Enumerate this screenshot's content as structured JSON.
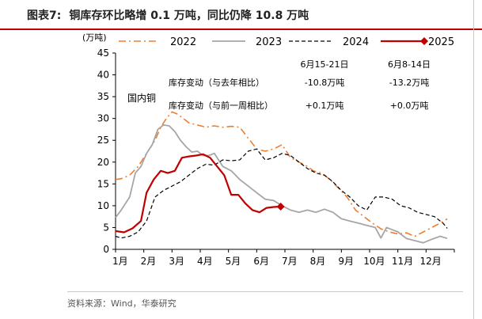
{
  "figure": {
    "label": "图表7:",
    "title": "铜库存环比略增 0.1 万吨，同比仍降 10.8 万吨",
    "source": "资料来源：Wind，华泰研究"
  },
  "colors": {
    "accent": "#c00000",
    "s2022": "#ED7D31",
    "s2023": "#A6A6A6",
    "s2024": "#000000",
    "s2025": "#C00000"
  },
  "chart_data": {
    "type": "line",
    "ylabel": "(万吨)",
    "ylim": [
      0,
      45
    ],
    "yticks": [
      0,
      5,
      10,
      15,
      20,
      25,
      30,
      35,
      40,
      45
    ],
    "xlim": [
      1,
      13
    ],
    "xticks": [
      {
        "label": "1月",
        "x": 1
      },
      {
        "label": "2月",
        "x": 2
      },
      {
        "label": "3月",
        "x": 3
      },
      {
        "label": "4月",
        "x": 4
      },
      {
        "label": "5月",
        "x": 5
      },
      {
        "label": "6月",
        "x": 6
      },
      {
        "label": "7月",
        "x": 7
      },
      {
        "label": "8月",
        "x": 8
      },
      {
        "label": "9月",
        "x": 9
      },
      {
        "label": "10月",
        "x": 10
      },
      {
        "label": "11月",
        "x": 11
      },
      {
        "label": "12月",
        "x": 12
      }
    ],
    "inner_label": "国内铜",
    "series": [
      {
        "name": "2022",
        "style": "dashdot",
        "marker": "none",
        "points": [
          [
            1,
            16
          ],
          [
            1.2,
            16.2
          ],
          [
            1.5,
            17
          ],
          [
            1.8,
            19
          ],
          [
            2.1,
            22
          ],
          [
            2.4,
            25
          ],
          [
            2.6,
            28
          ],
          [
            2.8,
            30
          ],
          [
            3,
            31.5
          ],
          [
            3.2,
            31
          ],
          [
            3.4,
            30
          ],
          [
            3.6,
            29
          ],
          [
            3.9,
            28.5
          ],
          [
            4.2,
            28
          ],
          [
            4.5,
            28.3
          ],
          [
            4.8,
            28
          ],
          [
            5.1,
            28.2
          ],
          [
            5.4,
            28
          ],
          [
            5.7,
            25.5
          ],
          [
            6,
            23
          ],
          [
            6.3,
            22.5
          ],
          [
            6.6,
            23
          ],
          [
            6.9,
            24
          ],
          [
            7.2,
            21
          ],
          [
            7.5,
            20
          ],
          [
            7.8,
            19
          ],
          [
            8,
            18
          ],
          [
            8.3,
            17.5
          ],
          [
            8.6,
            16
          ],
          [
            8.9,
            14
          ],
          [
            9.2,
            12
          ],
          [
            9.5,
            9
          ],
          [
            9.8,
            7.5
          ],
          [
            10.1,
            6
          ],
          [
            10.4,
            4.7
          ],
          [
            10.7,
            4
          ],
          [
            11,
            3.5
          ],
          [
            11.3,
            3.8
          ],
          [
            11.6,
            3
          ],
          [
            11.9,
            4
          ],
          [
            12.2,
            5
          ],
          [
            12.5,
            6
          ],
          [
            12.75,
            7
          ]
        ]
      },
      {
        "name": "2023",
        "style": "solid",
        "marker": "none",
        "points": [
          [
            1,
            7.3
          ],
          [
            1.2,
            9
          ],
          [
            1.5,
            12
          ],
          [
            1.7,
            17.5
          ],
          [
            1.9,
            19
          ],
          [
            2.1,
            22
          ],
          [
            2.3,
            24
          ],
          [
            2.5,
            27.5
          ],
          [
            2.7,
            28.5
          ],
          [
            2.9,
            28.3
          ],
          [
            3.1,
            27
          ],
          [
            3.3,
            25
          ],
          [
            3.5,
            23.5
          ],
          [
            3.7,
            22.3
          ],
          [
            3.9,
            22.5
          ],
          [
            4.1,
            21.5
          ],
          [
            4.3,
            21.5
          ],
          [
            4.5,
            22
          ],
          [
            4.8,
            19
          ],
          [
            5.1,
            18
          ],
          [
            5.4,
            16
          ],
          [
            5.7,
            14.5
          ],
          [
            6,
            13
          ],
          [
            6.3,
            11.5
          ],
          [
            6.6,
            11.2
          ],
          [
            6.9,
            10
          ],
          [
            7.2,
            9
          ],
          [
            7.5,
            8.5
          ],
          [
            7.8,
            9
          ],
          [
            8.1,
            8.5
          ],
          [
            8.4,
            9.2
          ],
          [
            8.7,
            8.5
          ],
          [
            9,
            7
          ],
          [
            9.3,
            6.5
          ],
          [
            9.6,
            6
          ],
          [
            9.9,
            5.5
          ],
          [
            10.2,
            5
          ],
          [
            10.4,
            2.6
          ],
          [
            10.6,
            5
          ],
          [
            10.8,
            4.5
          ],
          [
            11,
            4
          ],
          [
            11.3,
            2.5
          ],
          [
            11.6,
            2
          ],
          [
            11.9,
            1.5
          ],
          [
            12.2,
            2.3
          ],
          [
            12.5,
            3
          ],
          [
            12.75,
            2.5
          ]
        ]
      },
      {
        "name": "2024",
        "style": "dashed",
        "marker": "none",
        "points": [
          [
            1,
            3
          ],
          [
            1.2,
            2.6
          ],
          [
            1.5,
            3
          ],
          [
            1.8,
            4
          ],
          [
            2.1,
            6.5
          ],
          [
            2.4,
            12
          ],
          [
            2.7,
            13.5
          ],
          [
            3,
            14.5
          ],
          [
            3.3,
            15.5
          ],
          [
            3.6,
            17
          ],
          [
            3.9,
            18.5
          ],
          [
            4.2,
            19.5
          ],
          [
            4.5,
            19.3
          ],
          [
            4.8,
            20.5
          ],
          [
            5.1,
            20.3
          ],
          [
            5.4,
            20.5
          ],
          [
            5.7,
            22.5
          ],
          [
            6,
            23
          ],
          [
            6.3,
            20.5
          ],
          [
            6.6,
            21
          ],
          [
            6.9,
            22
          ],
          [
            7.2,
            21.5
          ],
          [
            7.5,
            20
          ],
          [
            7.8,
            18.5
          ],
          [
            8.1,
            17.5
          ],
          [
            8.4,
            17
          ],
          [
            8.7,
            15.5
          ],
          [
            9,
            13.5
          ],
          [
            9.3,
            12
          ],
          [
            9.6,
            10
          ],
          [
            9.9,
            9
          ],
          [
            10.2,
            12
          ],
          [
            10.5,
            12
          ],
          [
            10.8,
            11.5
          ],
          [
            11.1,
            10
          ],
          [
            11.4,
            9.5
          ],
          [
            11.7,
            8.5
          ],
          [
            12,
            8
          ],
          [
            12.3,
            7.5
          ],
          [
            12.6,
            6
          ],
          [
            12.75,
            4.8
          ]
        ]
      },
      {
        "name": "2025",
        "style": "solid",
        "marker": "diamond",
        "points": [
          [
            1,
            4.2
          ],
          [
            1.3,
            3.9
          ],
          [
            1.6,
            4.8
          ],
          [
            1.9,
            6.5
          ],
          [
            2.1,
            13
          ],
          [
            2.35,
            16
          ],
          [
            2.6,
            18
          ],
          [
            2.85,
            17.5
          ],
          [
            3.1,
            18
          ],
          [
            3.35,
            21
          ],
          [
            3.6,
            21.3
          ],
          [
            3.85,
            21.5
          ],
          [
            4.1,
            21.8
          ],
          [
            4.35,
            21
          ],
          [
            4.6,
            19
          ],
          [
            4.85,
            17
          ],
          [
            5.1,
            12.5
          ],
          [
            5.35,
            12.5
          ],
          [
            5.6,
            10.5
          ],
          [
            5.85,
            9
          ],
          [
            6.1,
            8.5
          ],
          [
            6.35,
            9.5
          ],
          [
            6.6,
            9.7
          ],
          [
            6.85,
            9.8
          ]
        ]
      }
    ],
    "table": {
      "col_headers": [
        "6月15-21日",
        "6月8-14日"
      ],
      "rows": [
        {
          "label": "库存变动（与去年相比）",
          "values": [
            "-10.8万吨",
            "-13.2万吨"
          ]
        },
        {
          "label": "库存变动（与前一周相比）",
          "values": [
            "+0.1万吨",
            "+0.0万吨"
          ]
        }
      ]
    }
  }
}
